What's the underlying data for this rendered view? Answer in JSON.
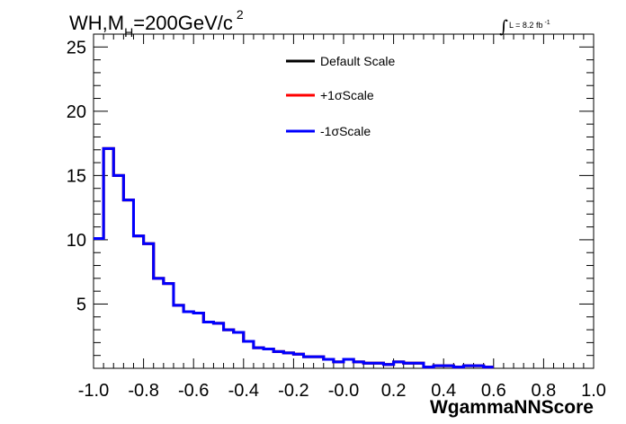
{
  "chart_data": {
    "type": "line",
    "title": {
      "prefix": "WH,M",
      "sub": "H",
      "rest": "=200GeV/c",
      "sup": "2"
    },
    "lumi": {
      "integral": "∫",
      "text": "L = 8.2 fb",
      "sup": "-1"
    },
    "xlabel": "WgammaNNScore",
    "ylabel": "",
    "xlim": [
      -1.0,
      1.0
    ],
    "ylim": [
      0,
      26
    ],
    "x_ticks": [
      "-1.0",
      "-0.8",
      "-0.6",
      "-0.4",
      "-0.2",
      "-0.0",
      "0.2",
      "0.4",
      "0.6",
      "0.8",
      "1.0"
    ],
    "x_tick_values": [
      -1.0,
      -0.8,
      -0.6,
      -0.4,
      -0.2,
      0.0,
      0.2,
      0.4,
      0.6,
      0.8,
      1.0
    ],
    "y_ticks": [
      "5",
      "10",
      "15",
      "20",
      "25"
    ],
    "y_tick_values": [
      5,
      10,
      15,
      20,
      25
    ],
    "bin_edges_start": -1.0,
    "bin_width": 0.04,
    "legend_position": "top-center",
    "series": [
      {
        "name": "Default Scale",
        "color": "#000000",
        "values": [
          10.1,
          17.1,
          15.0,
          13.1,
          10.3,
          9.7,
          7.0,
          6.6,
          4.9,
          4.4,
          4.3,
          3.6,
          3.5,
          3.0,
          2.8,
          2.1,
          1.6,
          1.5,
          1.3,
          1.2,
          1.1,
          0.9,
          0.9,
          0.7,
          0.5,
          0.7,
          0.5,
          0.4,
          0.4,
          0.3,
          0.5,
          0.4,
          0.4,
          0.1,
          0.2,
          0.2,
          0.1,
          0.2,
          0.2,
          0.1
        ]
      },
      {
        "name": "+1σScale",
        "color": "#ff0000",
        "values": [
          10.1,
          17.1,
          15.0,
          13.1,
          10.3,
          9.7,
          7.0,
          6.6,
          4.9,
          4.4,
          4.3,
          3.6,
          3.5,
          3.0,
          2.8,
          2.1,
          1.6,
          1.5,
          1.3,
          1.2,
          1.1,
          0.9,
          0.9,
          0.7,
          0.5,
          0.7,
          0.5,
          0.4,
          0.4,
          0.3,
          0.5,
          0.4,
          0.4,
          0.1,
          0.2,
          0.2,
          0.1,
          0.2,
          0.2,
          0.1
        ]
      },
      {
        "name": "-1σScale",
        "color": "#0000ff",
        "values": [
          10.1,
          17.1,
          15.0,
          13.1,
          10.3,
          9.7,
          7.0,
          6.6,
          4.9,
          4.4,
          4.3,
          3.6,
          3.5,
          3.0,
          2.8,
          2.1,
          1.6,
          1.5,
          1.3,
          1.2,
          1.1,
          0.9,
          0.9,
          0.7,
          0.5,
          0.7,
          0.5,
          0.4,
          0.4,
          0.3,
          0.5,
          0.4,
          0.4,
          0.1,
          0.2,
          0.2,
          0.1,
          0.2,
          0.2,
          0.1
        ]
      }
    ]
  }
}
